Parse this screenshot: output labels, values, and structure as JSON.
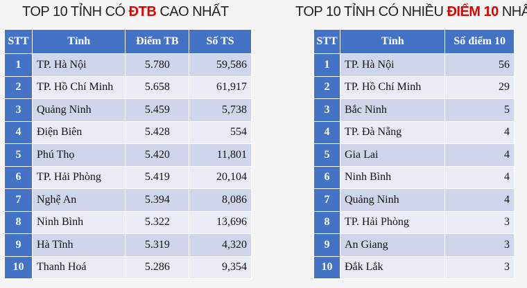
{
  "left": {
    "title_pre": "TOP 10 TỈNH CÓ ",
    "title_hl": "ĐTB",
    "title_post": " CAO NHẤT",
    "headers": [
      "STT",
      "Tỉnh",
      "Điểm TB",
      "Số TS"
    ],
    "rows": [
      [
        "1",
        "TP. Hà Nội",
        "5.780",
        "59,586"
      ],
      [
        "2",
        "TP. Hồ Chí Minh",
        "5.658",
        "61,917"
      ],
      [
        "3",
        "Quảng Ninh",
        "5.459",
        "5,738"
      ],
      [
        "4",
        "Điện Biên",
        "5.428",
        "554"
      ],
      [
        "5",
        "Phú Thọ",
        "5.420",
        "11,801"
      ],
      [
        "6",
        "TP. Hải Phòng",
        "5.419",
        "20,104"
      ],
      [
        "7",
        "Nghệ An",
        "5.394",
        "8,086"
      ],
      [
        "8",
        "Ninh Bình",
        "5.322",
        "13,696"
      ],
      [
        "9",
        "Hà Tĩnh",
        "5.319",
        "4,320"
      ],
      [
        "10",
        "Thanh Hoá",
        "5.286",
        "9,354"
      ]
    ]
  },
  "right": {
    "title_pre": "TOP 10 TỈNH CÓ NHIỀU ",
    "title_hl": "ĐIỂM 10",
    "title_post": " NHẤT",
    "headers": [
      "STT",
      "Tỉnh",
      "Số điểm 10"
    ],
    "rows": [
      [
        "1",
        "TP. Hà Nội",
        "56"
      ],
      [
        "2",
        "TP. Hồ Chí Minh",
        "29"
      ],
      [
        "3",
        "Bắc Ninh",
        "5"
      ],
      [
        "4",
        "TP. Đà Nẵng",
        "4"
      ],
      [
        "5",
        "Gia Lai",
        "4"
      ],
      [
        "6",
        "Ninh Bình",
        "4"
      ],
      [
        "7",
        "Quảng Ninh",
        "4"
      ],
      [
        "8",
        "TP. Hải Phòng",
        "3"
      ],
      [
        "9",
        "An Giang",
        "3"
      ],
      [
        "10",
        "Đắk Lắk",
        "3"
      ]
    ]
  },
  "colors": {
    "header": "#4472c4",
    "row_odd": "#cfd5ea",
    "row_even": "#e9ebf5",
    "highlight": "#e00000"
  }
}
